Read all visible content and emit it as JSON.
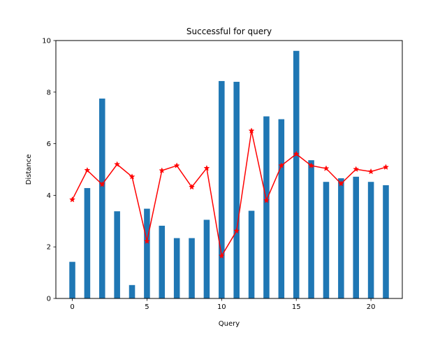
{
  "chart_data": {
    "type": "bar",
    "title": "Successful for query",
    "xlabel": "Query",
    "ylabel": "Distance",
    "x": [
      0,
      1,
      2,
      3,
      4,
      5,
      6,
      7,
      8,
      9,
      10,
      11,
      12,
      13,
      14,
      15,
      16,
      17,
      18,
      19,
      20,
      21
    ],
    "xlim": [
      -1.1,
      22.1
    ],
    "ylim": [
      0,
      10
    ],
    "xticks": [
      0,
      5,
      10,
      15,
      20
    ],
    "yticks": [
      0,
      2,
      4,
      6,
      8,
      10
    ],
    "grid": false,
    "series": [
      {
        "kind": "bar",
        "color": "#1f77b4",
        "values": [
          1.42,
          4.28,
          7.75,
          3.38,
          0.52,
          3.48,
          2.82,
          2.34,
          2.34,
          3.05,
          8.43,
          8.4,
          3.4,
          7.06,
          6.95,
          9.6,
          5.36,
          4.52,
          4.66,
          4.72,
          4.52,
          4.39
        ]
      },
      {
        "kind": "line",
        "marker": "star",
        "color": "#ff0000",
        "values": [
          3.83,
          4.97,
          4.42,
          5.2,
          4.72,
          2.22,
          4.96,
          5.15,
          4.32,
          5.05,
          1.65,
          2.62,
          6.5,
          3.8,
          5.15,
          5.6,
          5.15,
          5.04,
          4.45,
          5.01,
          4.92,
          5.09
        ]
      }
    ]
  }
}
